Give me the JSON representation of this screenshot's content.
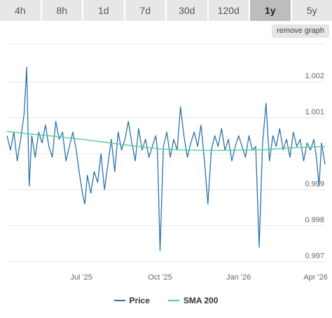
{
  "tabs": [
    {
      "label": "4h",
      "active": false
    },
    {
      "label": "8h",
      "active": false
    },
    {
      "label": "1d",
      "active": false
    },
    {
      "label": "7d",
      "active": false
    },
    {
      "label": "30d",
      "active": false
    },
    {
      "label": "120d",
      "active": false
    },
    {
      "label": "1y",
      "active": true
    },
    {
      "label": "5y",
      "active": false
    }
  ],
  "remove_graph_label": "remove graph",
  "colors": {
    "price": "#2c73a8",
    "sma": "#4fce9b",
    "grid": "#e6e6e6"
  },
  "chart_data": {
    "type": "line",
    "x_start": "2025-04-05",
    "x_end": "2026-04-12",
    "xticks": [
      {
        "label": "Jul '25",
        "date": "2025-07-01"
      },
      {
        "label": "Oct '25",
        "date": "2025-10-01"
      },
      {
        "label": "Jan '26",
        "date": "2026-01-01"
      },
      {
        "label": "Apr '26",
        "date": "2026-04-01"
      }
    ],
    "ylim": [
      0.99683,
      1.00305
    ],
    "yticks": [
      0.997,
      0.998,
      0.999,
      1.0,
      1.001,
      1.002
    ],
    "ytick_labels": [
      "0.997",
      "0.998",
      "0.999",
      "",
      "1.001",
      "1.002"
    ],
    "series": [
      {
        "name": "Price",
        "x": [
          "2025-04-05",
          "2025-04-09",
          "2025-04-13",
          "2025-04-17",
          "2025-04-21",
          "2025-04-25",
          "2025-04-28",
          "2025-05-01",
          "2025-05-04",
          "2025-05-08",
          "2025-05-12",
          "2025-05-16",
          "2025-05-20",
          "2025-05-24",
          "2025-05-28",
          "2025-06-01",
          "2025-06-05",
          "2025-06-09",
          "2025-06-13",
          "2025-06-17",
          "2025-06-21",
          "2025-06-25",
          "2025-06-29",
          "2025-07-03",
          "2025-07-05",
          "2025-07-08",
          "2025-07-12",
          "2025-07-16",
          "2025-07-20",
          "2025-07-24",
          "2025-07-28",
          "2025-08-01",
          "2025-08-05",
          "2025-08-09",
          "2025-08-13",
          "2025-08-17",
          "2025-08-21",
          "2025-08-25",
          "2025-08-29",
          "2025-09-02",
          "2025-09-06",
          "2025-09-10",
          "2025-09-14",
          "2025-09-18",
          "2025-09-22",
          "2025-09-26",
          "2025-09-28",
          "2025-10-01",
          "2025-10-05",
          "2025-10-09",
          "2025-10-13",
          "2025-10-17",
          "2025-10-21",
          "2025-10-25",
          "2025-10-29",
          "2025-11-02",
          "2025-11-06",
          "2025-11-10",
          "2025-11-14",
          "2025-11-18",
          "2025-11-22",
          "2025-11-26",
          "2025-11-30",
          "2025-12-04",
          "2025-12-08",
          "2025-12-12",
          "2025-12-16",
          "2025-12-20",
          "2025-12-24",
          "2025-12-28",
          "2026-01-01",
          "2026-01-05",
          "2026-01-09",
          "2026-01-13",
          "2026-01-17",
          "2026-01-21",
          "2026-01-25",
          "2026-01-29",
          "2026-02-02",
          "2026-02-06",
          "2026-02-10",
          "2026-02-14",
          "2026-02-18",
          "2026-02-22",
          "2026-02-26",
          "2026-03-02",
          "2026-03-06",
          "2026-03-10",
          "2026-03-14",
          "2026-03-18",
          "2026-03-22",
          "2026-03-26",
          "2026-03-30",
          "2026-04-02",
          "2026-04-05",
          "2026-04-08",
          "2026-04-12"
        ],
        "y": [
          1.0005,
          1.0001,
          1.0006,
          0.9998,
          1.0004,
          1.0011,
          1.0024,
          0.9991,
          1.0005,
          0.9999,
          1.0006,
          1.0003,
          1.0008,
          1.0002,
          0.9999,
          1.0009,
          1.0004,
          1.0006,
          0.9998,
          1.0002,
          1.0006,
          1.0001,
          0.9994,
          0.9988,
          0.9986,
          0.9994,
          0.9989,
          0.9995,
          0.9992,
          1.0,
          0.999,
          0.9997,
          1.0004,
          0.9995,
          1.0006,
          1.0001,
          1.0004,
          1.0009,
          1.0003,
          0.9998,
          1.0007,
          1.0001,
          1.0004,
          0.9999,
          1.0002,
          1.0005,
          1.0001,
          0.9973,
          1.0002,
          1.0006,
          0.9999,
          1.0004,
          1.0001,
          1.0013,
          1.0005,
          0.9999,
          1.0003,
          1.0006,
          1.0002,
          1.0008,
          0.9998,
          0.9986,
          1.0001,
          1.0005,
          1.0002,
          1.0007,
          1.0001,
          1.0004,
          0.9998,
          1.0002,
          1.0005,
          1.0002,
          0.9999,
          1.0005,
          1.0001,
          1.0002,
          0.9974,
          1.0003,
          1.0014,
          0.9998,
          1.0005,
          1.0002,
          1.0007,
          1.0001,
          1.0004,
          0.9999,
          1.0006,
          1.0002,
          1.0004,
          0.9998,
          1.0003,
          1.0001,
          1.0004,
          0.9999,
          0.9991,
          1.0003,
          0.9997
        ]
      },
      {
        "name": "SMA 200",
        "x": [
          "2025-04-05",
          "2025-05-01",
          "2025-06-01",
          "2025-07-01",
          "2025-08-01",
          "2025-09-01",
          "2025-10-01",
          "2025-11-01",
          "2025-12-01",
          "2026-01-01",
          "2026-02-01",
          "2026-03-01",
          "2026-04-12"
        ],
        "y": [
          1.00062,
          1.00055,
          1.00048,
          1.0004,
          1.00031,
          1.00021,
          1.00013,
          1.0001,
          1.00009,
          1.0001,
          1.00011,
          1.00016,
          1.0002
        ]
      }
    ]
  }
}
